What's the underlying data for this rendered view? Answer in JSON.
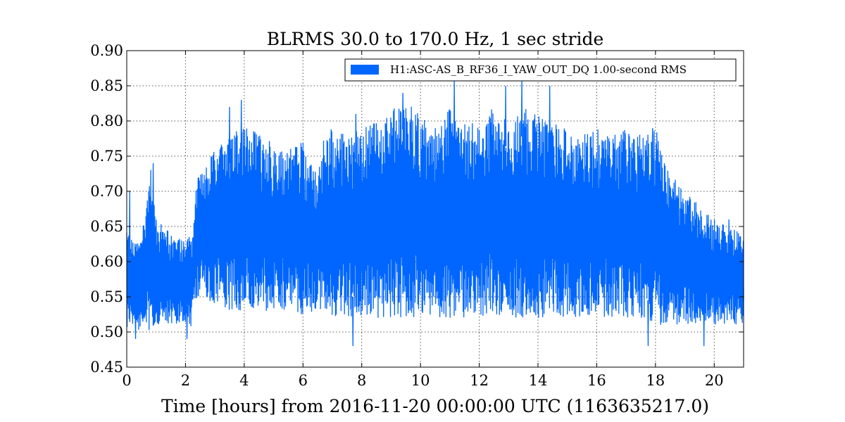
{
  "chart_data": {
    "type": "line",
    "title": "BLRMS 30.0 to 170.0 Hz, 1 sec stride",
    "xlabel": "Time [hours] from 2016-11-20 00:00:00 UTC (1163635217.0)",
    "ylabel": "",
    "xlim": [
      0,
      21
    ],
    "ylim": [
      0.45,
      0.9
    ],
    "x_ticks": [
      0,
      2,
      4,
      6,
      8,
      10,
      12,
      14,
      16,
      18,
      20
    ],
    "x_tick_labels": [
      "0",
      "2",
      "4",
      "6",
      "8",
      "10",
      "12",
      "14",
      "16",
      "18",
      "20"
    ],
    "y_ticks": [
      0.45,
      0.5,
      0.55,
      0.6,
      0.65,
      0.7,
      0.75,
      0.8,
      0.85,
      0.9
    ],
    "y_tick_labels": [
      "0.45",
      "0.50",
      "0.55",
      "0.60",
      "0.65",
      "0.70",
      "0.75",
      "0.80",
      "0.85",
      "0.90"
    ],
    "grid": true,
    "legend_position": "top-right",
    "series": [
      {
        "name": "H1:ASC-AS_B_RF36_I_YAW_OUT_DQ 1.00-second RMS",
        "color": "#0066ff",
        "envelope": {
          "x": [
            0.0,
            0.5,
            0.8,
            1.0,
            1.5,
            2.0,
            2.2,
            2.4,
            3.0,
            3.5,
            4.0,
            4.5,
            5.0,
            5.5,
            6.0,
            6.5,
            6.7,
            7.0,
            7.5,
            8.0,
            8.5,
            9.0,
            9.5,
            10.0,
            10.5,
            11.0,
            11.5,
            12.0,
            12.5,
            13.0,
            13.5,
            14.0,
            14.5,
            15.0,
            15.5,
            16.0,
            16.5,
            17.0,
            17.5,
            18.0,
            18.5,
            19.0,
            19.5,
            20.0,
            20.5,
            21.0
          ],
          "high": [
            0.65,
            0.63,
            0.74,
            0.66,
            0.64,
            0.63,
            0.64,
            0.72,
            0.76,
            0.78,
            0.8,
            0.78,
            0.77,
            0.76,
            0.77,
            0.72,
            0.78,
            0.79,
            0.78,
            0.79,
            0.8,
            0.82,
            0.83,
            0.81,
            0.79,
            0.82,
            0.8,
            0.8,
            0.82,
            0.8,
            0.82,
            0.81,
            0.8,
            0.79,
            0.78,
            0.79,
            0.78,
            0.79,
            0.78,
            0.79,
            0.73,
            0.7,
            0.68,
            0.66,
            0.65,
            0.64
          ],
          "low": [
            0.5,
            0.5,
            0.5,
            0.51,
            0.51,
            0.51,
            0.5,
            0.55,
            0.54,
            0.53,
            0.53,
            0.53,
            0.53,
            0.53,
            0.52,
            0.53,
            0.53,
            0.52,
            0.52,
            0.52,
            0.52,
            0.52,
            0.52,
            0.52,
            0.52,
            0.52,
            0.52,
            0.52,
            0.52,
            0.52,
            0.52,
            0.52,
            0.52,
            0.52,
            0.52,
            0.52,
            0.52,
            0.52,
            0.52,
            0.51,
            0.51,
            0.51,
            0.51,
            0.51,
            0.51,
            0.51
          ]
        },
        "peaks": [
          {
            "x": 0.1,
            "y": 0.7
          },
          {
            "x": 0.9,
            "y": 0.74
          },
          {
            "x": 3.5,
            "y": 0.82
          },
          {
            "x": 3.9,
            "y": 0.83
          },
          {
            "x": 7.8,
            "y": 0.81
          },
          {
            "x": 9.4,
            "y": 0.84
          },
          {
            "x": 11.15,
            "y": 0.86
          },
          {
            "x": 12.9,
            "y": 0.85
          },
          {
            "x": 13.45,
            "y": 0.86
          },
          {
            "x": 14.4,
            "y": 0.85
          },
          {
            "x": 17.9,
            "y": 0.79
          },
          {
            "x": 20.5,
            "y": 0.66
          }
        ],
        "troughs": [
          {
            "x": 0.3,
            "y": 0.49
          },
          {
            "x": 2.05,
            "y": 0.49
          },
          {
            "x": 7.7,
            "y": 0.48
          },
          {
            "x": 17.75,
            "y": 0.48
          },
          {
            "x": 19.65,
            "y": 0.48
          }
        ]
      }
    ]
  }
}
